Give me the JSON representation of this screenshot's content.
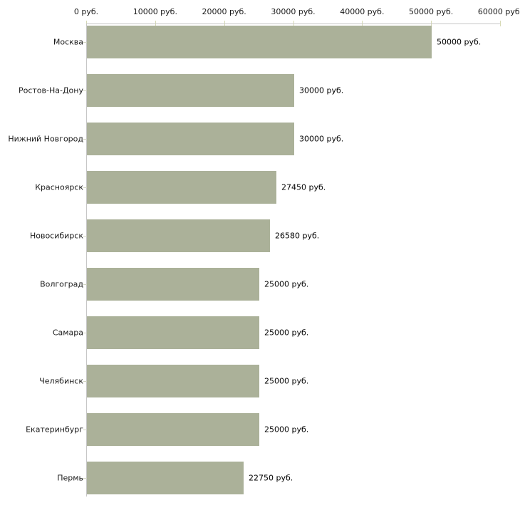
{
  "chart_data": {
    "type": "bar",
    "orientation": "horizontal",
    "title": "",
    "categories": [
      "Москва",
      "Ростов-На-Дону",
      "Нижний Новгород",
      "Красноярск",
      "Новосибирск",
      "Волгоград",
      "Самара",
      "Челябинск",
      "Екатеринбург",
      "Пермь"
    ],
    "values": [
      50000,
      30000,
      30000,
      27450,
      26580,
      25000,
      25000,
      25000,
      25000,
      22750
    ],
    "value_labels": [
      "50000 руб.",
      "30000 руб.",
      "30000 руб.",
      "27450 руб.",
      "26580 руб.",
      "25000 руб.",
      "25000 руб.",
      "25000 руб.",
      "25000 руб.",
      "22750 руб."
    ],
    "x_axis": {
      "position": "top",
      "min": 0,
      "max": 60000,
      "ticks": [
        0,
        10000,
        20000,
        30000,
        40000,
        50000,
        60000
      ],
      "tick_labels": [
        "0 руб.",
        "10000 руб.",
        "20000 руб.",
        "30000 руб.",
        "40000 руб.",
        "50000 руб.",
        "60000 руб."
      ]
    },
    "ylabel": "",
    "xlabel": "",
    "grid": false,
    "legend": false,
    "colors": {
      "bar": "#abb199",
      "axis_line": "#c6c6c6",
      "axis_tick": "#d6d9b4",
      "category_tick": "#d2d5c3",
      "text": "#1a1a1a",
      "background": "#ffffff"
    }
  }
}
